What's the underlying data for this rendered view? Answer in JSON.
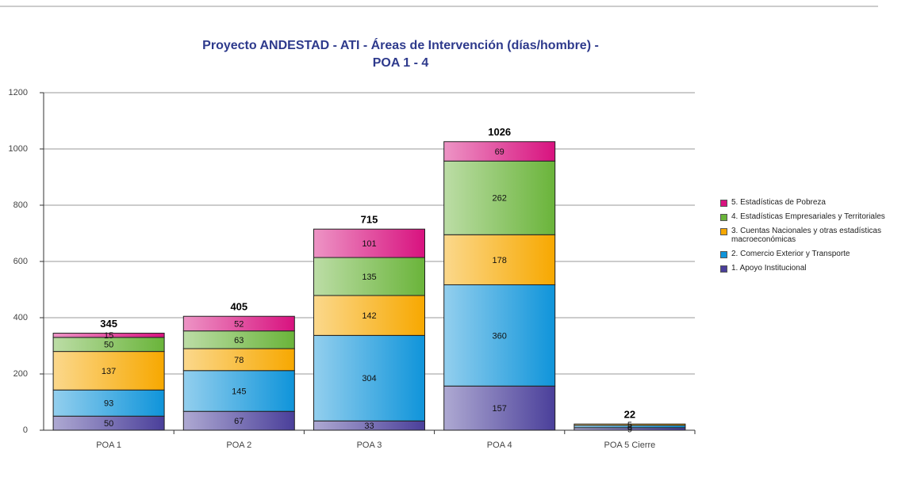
{
  "chart_data": {
    "type": "stacked_bar",
    "title": "Proyecto ANDESTAD - ATI - Áreas de Intervención (días/hombre) -",
    "subtitle": "POA 1 - 4",
    "categories": [
      "POA 1",
      "POA 2",
      "POA 3",
      "POA 4",
      "POA 5 Cierre"
    ],
    "series": [
      {
        "name": "1. Apoyo Institucional",
        "color": "#4a3f9a",
        "values": [
          50,
          67,
          33,
          157,
          9
        ]
      },
      {
        "name": "2. Comercio Exterior y Transporte",
        "color": "#0f94da",
        "values": [
          93,
          145,
          304,
          360,
          8
        ]
      },
      {
        "name": "3. Cuentas Nacionales y otras estadísticas macroeconómicas",
        "color": "#f7a800",
        "values": [
          137,
          78,
          142,
          178,
          5
        ]
      },
      {
        "name": "4. Estadísticas Empresariales y Territoriales",
        "color": "#6ab43a",
        "values": [
          50,
          63,
          135,
          262,
          null
        ]
      },
      {
        "name": "5. Estadísticas de Pobreza",
        "color": "#d8127f",
        "values": [
          15,
          52,
          101,
          69,
          null
        ]
      }
    ],
    "totals": [
      345,
      405,
      715,
      1026,
      22
    ],
    "ylim": [
      0,
      1200
    ],
    "yticks": [
      0,
      200,
      400,
      600,
      800,
      1000,
      1200
    ],
    "grid": true
  }
}
